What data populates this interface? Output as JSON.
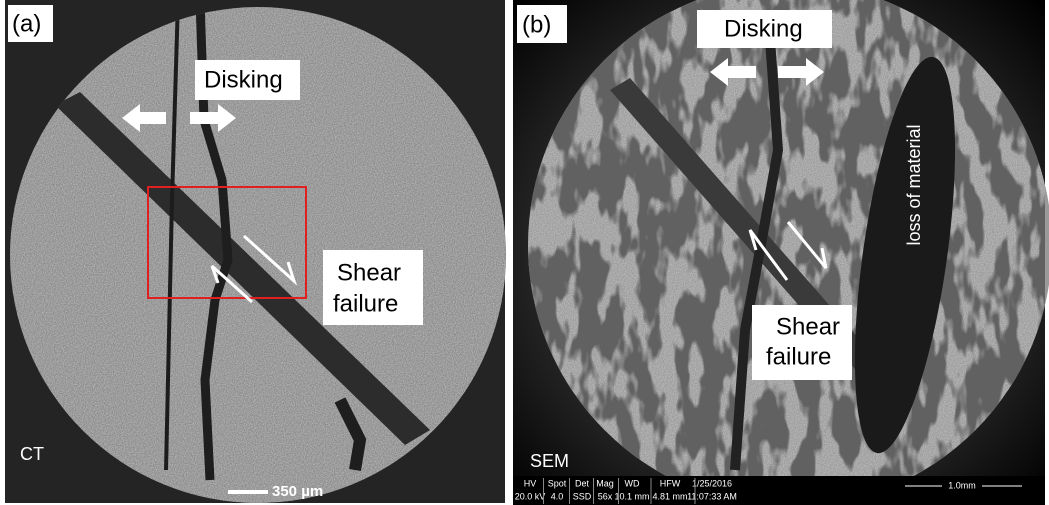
{
  "panels": [
    {
      "label": "(a)",
      "disking": "Disking",
      "shear": [
        "Shear",
        "failure"
      ],
      "modality": "CT",
      "scale_bar": "350 µm"
    },
    {
      "label": "(b)",
      "disking": "Disking",
      "shear": [
        "Shear",
        "failure"
      ],
      "loss": "loss of material",
      "modality": "SEM",
      "info_bar": {
        "headers": [
          "HV",
          "Spot",
          "Det",
          "Mag",
          "WD",
          "HFW",
          "1/25/2016"
        ],
        "values": [
          "20.0 kV",
          "4.0",
          "SSD",
          "56x",
          "10.1 mm",
          "4.81 mm",
          "11:07:33 AM"
        ]
      },
      "scale_bar": "1.0mm"
    }
  ]
}
